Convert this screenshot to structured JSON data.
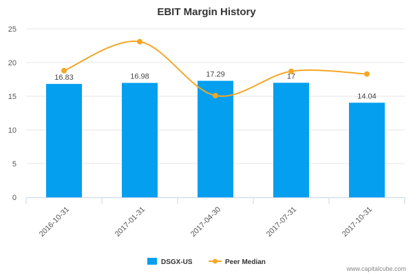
{
  "chart_data": {
    "type": "bar",
    "title": "EBIT Margin History",
    "categories": [
      "2016-10-31",
      "2017-01-31",
      "2017-04-30",
      "2017-07-31",
      "2017-10-31"
    ],
    "series": [
      {
        "name": "DSGX-US",
        "kind": "bar",
        "color": "#059fef",
        "values": [
          16.83,
          16.98,
          17.29,
          17,
          14.04
        ],
        "labels": [
          "16.83",
          "16.98",
          "17.29",
          "17",
          "14.04"
        ]
      },
      {
        "name": "Peer Median",
        "kind": "line",
        "color": "#f5a623",
        "values": [
          18.8,
          23.1,
          15.1,
          18.7,
          18.3
        ]
      }
    ],
    "ylim": [
      0,
      25
    ],
    "yticks": [
      "0",
      "5",
      "10",
      "15",
      "20",
      "25"
    ],
    "grid": true,
    "legend": "bottom-center"
  },
  "credit": "www.capitalcube.com"
}
